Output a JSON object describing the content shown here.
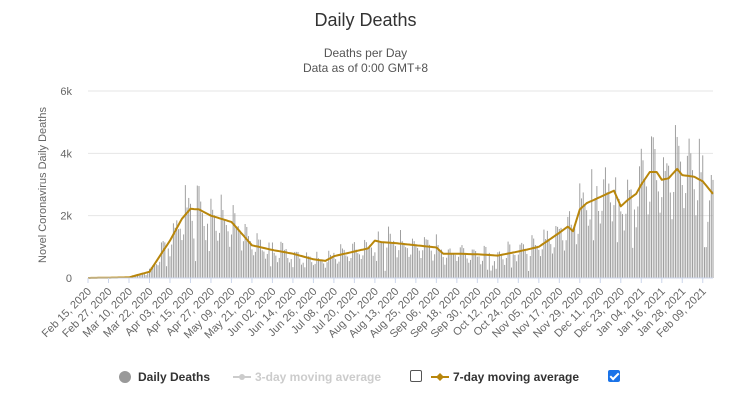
{
  "chart_data": {
    "type": "bar",
    "title": "Daily Deaths",
    "subtitle_lines": [
      "Deaths per Day",
      "Data as of 0:00 GMT+8"
    ],
    "ylabel": "Novel Coronavirus Daily Deaths",
    "xlabel": "",
    "ylim": [
      0,
      6000
    ],
    "yticks": [
      0,
      2000,
      4000,
      6000
    ],
    "ytick_labels": [
      "0",
      "2k",
      "4k",
      "6k"
    ],
    "grid": "horizontal",
    "legend_placement": "bottom",
    "x_tick_labels": [
      "Feb 15, 2020",
      "Feb 27, 2020",
      "Mar 10, 2020",
      "Mar 22, 2020",
      "Apr 03, 2020",
      "Apr 15, 2020",
      "Apr 27, 2020",
      "May 09, 2020",
      "May 21, 2020",
      "Jun 02, 2020",
      "Jun 14, 2020",
      "Jun 26, 2020",
      "Jul 08, 2020",
      "Jul 20, 2020",
      "Aug 01, 2020",
      "Aug 13, 2020",
      "Aug 25, 2020",
      "Sep 06, 2020",
      "Sep 18, 2020",
      "Sep 30, 2020",
      "Oct 12, 2020",
      "Oct 24, 2020",
      "Nov 05, 2020",
      "Nov 17, 2020",
      "Nov 29, 2020",
      "Dec 11, 2020",
      "Dec 23, 2020",
      "Jan 04, 2021",
      "Jan 16, 2021",
      "Jan 28, 2021",
      "Feb 09, 2021"
    ],
    "x_start": "Feb 15, 2020",
    "x_end": "Feb 15, 2021",
    "series": [
      {
        "name": "Daily Deaths",
        "type": "bar",
        "color": "#999999",
        "note": "daily values approximated from the 7-day moving average with weekly reporting variation",
        "values": []
      },
      {
        "name": "3-day moving average",
        "type": "line",
        "color": "#cccccc",
        "visible": false,
        "values": []
      },
      {
        "name": "7-day moving average",
        "type": "line",
        "color": "#b8860b",
        "visible": true,
        "anchor_dates": [
          "Feb 15, 2020",
          "Mar 10, 2020",
          "Mar 22, 2020",
          "Apr 03, 2020",
          "Apr 10, 2020",
          "Apr 15, 2020",
          "Apr 20, 2020",
          "Apr 27, 2020",
          "May 09, 2020",
          "May 21, 2020",
          "Jun 02, 2020",
          "Jun 14, 2020",
          "Jun 26, 2020",
          "Jul 03, 2020",
          "Jul 08, 2020",
          "Jul 20, 2020",
          "Jul 28, 2020",
          "Aug 01, 2020",
          "Aug 05, 2020",
          "Aug 13, 2020",
          "Aug 25, 2020",
          "Sep 06, 2020",
          "Sep 10, 2020",
          "Sep 18, 2020",
          "Sep 30, 2020",
          "Oct 12, 2020",
          "Oct 24, 2020",
          "Nov 05, 2020",
          "Nov 17, 2020",
          "Nov 22, 2020",
          "Nov 25, 2020",
          "Nov 29, 2020",
          "Dec 03, 2020",
          "Dec 11, 2020",
          "Dec 19, 2020",
          "Dec 23, 2020",
          "Dec 27, 2020",
          "Jan 01, 2021",
          "Jan 04, 2021",
          "Jan 09, 2021",
          "Jan 13, 2021",
          "Jan 16, 2021",
          "Jan 20, 2021",
          "Jan 25, 2021",
          "Jan 28, 2021",
          "Feb 04, 2021",
          "Feb 09, 2021",
          "Feb 15, 2021"
        ],
        "anchor_values": [
          0,
          20,
          200,
          1200,
          1900,
          2220,
          2200,
          2000,
          1800,
          1050,
          900,
          780,
          600,
          550,
          700,
          850,
          950,
          1200,
          1150,
          1120,
          1050,
          980,
          780,
          780,
          760,
          720,
          850,
          1000,
          1450,
          1650,
          1500,
          2200,
          2400,
          2600,
          2800,
          2300,
          2500,
          2700,
          3000,
          3400,
          3400,
          3150,
          3200,
          3500,
          3300,
          3250,
          3100,
          2700
        ]
      }
    ]
  },
  "legend": {
    "daily_deaths": {
      "label": "Daily Deaths",
      "color": "#999999"
    },
    "ma3": {
      "label": "3-day moving average",
      "color": "#cccccc",
      "checked": false
    },
    "ma7": {
      "label": "7-day moving average",
      "color": "#b8860b",
      "checked": true
    }
  }
}
